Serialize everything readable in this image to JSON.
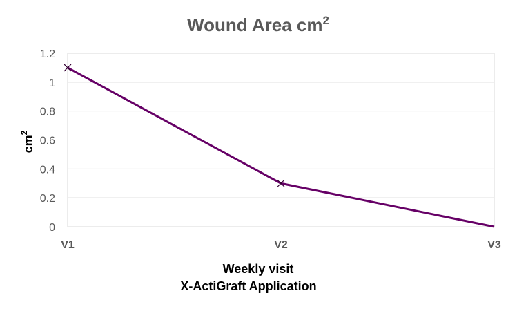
{
  "chart_data": {
    "type": "line",
    "title": "Wound Area cm",
    "title_superscript": "2",
    "ylabel": "cm",
    "ylabel_superscript": "2",
    "xlabel": [
      "Weekly visit",
      "X-ActiGraft Application"
    ],
    "categories": [
      "V1",
      "V2",
      "V3"
    ],
    "series": [
      {
        "values": [
          1.1,
          0.3,
          0.0
        ],
        "color": "#660066"
      }
    ],
    "ylim": [
      0,
      1.2
    ],
    "yticks": [
      "0",
      "0.2",
      "0.4",
      "0.6",
      "0.8",
      "1",
      "1.2"
    ],
    "ytick_values": [
      0,
      0.2,
      0.4,
      0.6,
      0.8,
      1.0,
      1.2
    ],
    "markers": "x",
    "grid": true,
    "legend": "none"
  }
}
